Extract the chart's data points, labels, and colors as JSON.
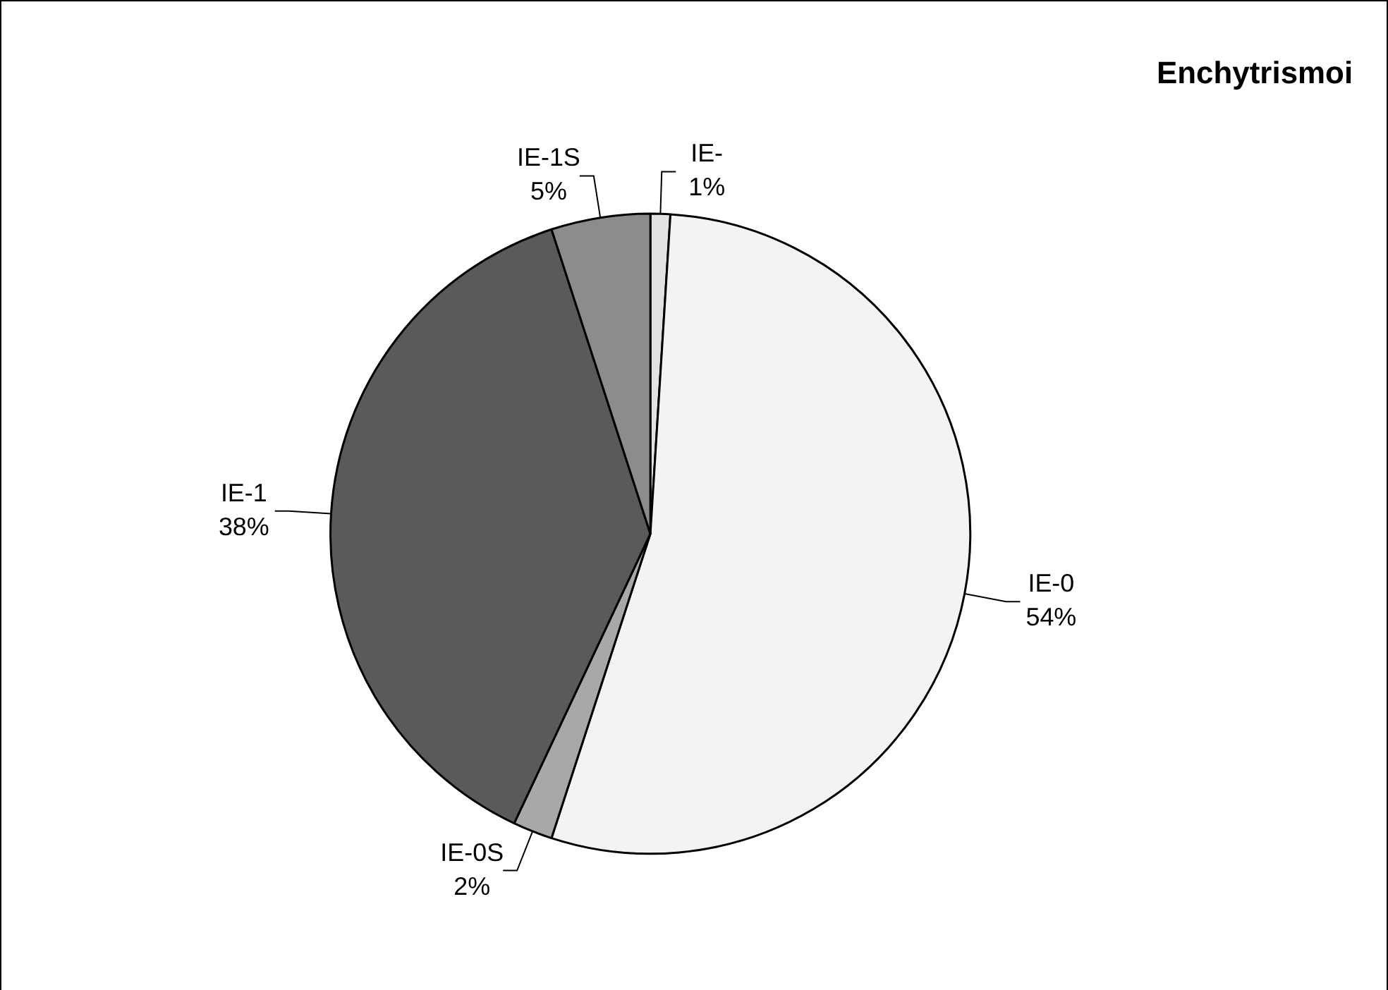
{
  "chart_data": {
    "type": "pie",
    "title": "Enchytrismoi",
    "categories": [
      "IE-",
      "IE-0",
      "IE-0S",
      "IE-1",
      "IE-1S"
    ],
    "values": [
      1,
      54,
      2,
      38,
      5
    ],
    "colors": [
      "#e2e2e2",
      "#f3f3f3",
      "#a8a8a8",
      "#5a5a5a",
      "#8c8c8c"
    ],
    "value_labels": [
      "1%",
      "54%",
      "2%",
      "38%",
      "5%"
    ],
    "legend": false
  }
}
